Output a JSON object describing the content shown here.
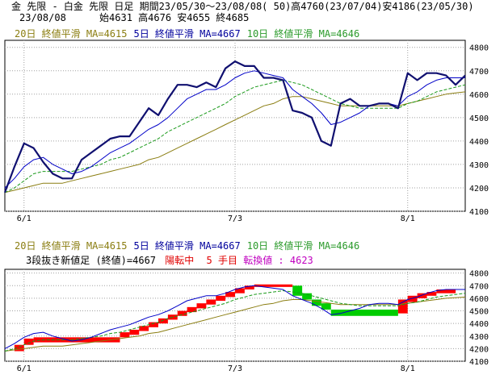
{
  "header": {
    "title": "金 先限 - 白金 先限 日足 期間23/05/30～23/08/08( 50)高4760(23/07/04)安4186(23/05/30)",
    "date": "23/08/08",
    "ohlc": "始4631 高4676 安4655 終4685"
  },
  "ma_legend": {
    "ma20": "20日 終値平滑 MA=4615",
    "ma5": "5日 終値平滑 MA=4667",
    "ma10": "10日 終値平滑 MA=4646"
  },
  "kagi_status": {
    "label": "3段抜き新値足 (終値)=4667",
    "trend": "陽転中",
    "count": "5 手目",
    "reversal": "転換値 : 4623"
  },
  "colors": {
    "close_line": "#101070",
    "ma5": "#0000c8",
    "ma10": "#1a9a1a",
    "ma20": "#8a7d10",
    "up_block": "#ff0000",
    "down_block": "#00cc00",
    "grid": "#a0a0a0"
  },
  "chart_data": [
    {
      "type": "line",
      "name": "price",
      "x_tick_labels": [
        "6/1",
        "7/3",
        "8/1"
      ],
      "x_tick_index": [
        2,
        24,
        42
      ],
      "y_ticks": [
        4100,
        4200,
        4300,
        4400,
        4500,
        4600,
        4700,
        4800
      ],
      "ylim": [
        4100,
        4830
      ],
      "grid": true,
      "series": [
        {
          "name": "close",
          "values": [
            4180,
            4290,
            4390,
            4370,
            4310,
            4260,
            4240,
            4240,
            4320,
            4350,
            4380,
            4410,
            4420,
            4420,
            4480,
            4540,
            4510,
            4580,
            4640,
            4640,
            4630,
            4650,
            4630,
            4710,
            4740,
            4720,
            4720,
            4670,
            4670,
            4660,
            4530,
            4520,
            4500,
            4400,
            4380,
            4560,
            4580,
            4550,
            4550,
            4560,
            4560,
            4540,
            4690,
            4660,
            4690,
            4690,
            4680,
            4640,
            4680
          ]
        },
        {
          "name": "ma5",
          "values": [
            4200,
            4240,
            4290,
            4320,
            4330,
            4300,
            4280,
            4260,
            4270,
            4290,
            4320,
            4350,
            4370,
            4390,
            4420,
            4450,
            4470,
            4500,
            4540,
            4580,
            4600,
            4620,
            4620,
            4640,
            4670,
            4690,
            4700,
            4690,
            4680,
            4670,
            4620,
            4590,
            4560,
            4520,
            4470,
            4480,
            4500,
            4520,
            4550,
            4560,
            4560,
            4550,
            4590,
            4610,
            4640,
            4660,
            4670,
            4670,
            4670
          ]
        },
        {
          "name": "ma10",
          "values": [
            4180,
            4200,
            4230,
            4260,
            4270,
            4270,
            4270,
            4270,
            4280,
            4290,
            4300,
            4320,
            4330,
            4350,
            4370,
            4390,
            4410,
            4440,
            4460,
            4480,
            4500,
            4520,
            4540,
            4560,
            4590,
            4610,
            4630,
            4640,
            4650,
            4660,
            4650,
            4640,
            4620,
            4600,
            4580,
            4560,
            4550,
            4540,
            4540,
            4540,
            4540,
            4540,
            4560,
            4570,
            4590,
            4610,
            4620,
            4630,
            4640
          ]
        },
        {
          "name": "ma20",
          "values": [
            4180,
            4190,
            4200,
            4210,
            4220,
            4220,
            4220,
            4230,
            4240,
            4250,
            4260,
            4270,
            4280,
            4290,
            4300,
            4320,
            4330,
            4350,
            4370,
            4390,
            4410,
            4430,
            4450,
            4470,
            4490,
            4510,
            4530,
            4550,
            4560,
            4580,
            4590,
            4590,
            4580,
            4570,
            4560,
            4550,
            4550,
            4550,
            4550,
            4550,
            4550,
            4550,
            4560,
            4570,
            4580,
            4590,
            4600,
            4605,
            4610
          ]
        }
      ]
    },
    {
      "type": "bar",
      "name": "new-price-blocks",
      "x_tick_labels": [
        "6/1",
        "7/3",
        "8/1"
      ],
      "y_ticks": [
        4100,
        4200,
        4300,
        4400,
        4500,
        4600,
        4700,
        4800
      ],
      "ylim": [
        4100,
        4830
      ],
      "grid": true,
      "blocks": [
        {
          "start": 1,
          "end": 2,
          "low": 4180,
          "high": 4230,
          "dir": "up"
        },
        {
          "start": 2,
          "end": 3,
          "low": 4230,
          "high": 4280,
          "dir": "up"
        },
        {
          "start": 3,
          "end": 12,
          "low": 4250,
          "high": 4290,
          "dir": "up"
        },
        {
          "start": 12,
          "end": 13,
          "low": 4290,
          "high": 4330,
          "dir": "up"
        },
        {
          "start": 13,
          "end": 14,
          "low": 4310,
          "high": 4350,
          "dir": "up"
        },
        {
          "start": 14,
          "end": 15,
          "low": 4340,
          "high": 4380,
          "dir": "up"
        },
        {
          "start": 15,
          "end": 16,
          "low": 4370,
          "high": 4410,
          "dir": "up"
        },
        {
          "start": 16,
          "end": 17,
          "low": 4400,
          "high": 4440,
          "dir": "up"
        },
        {
          "start": 17,
          "end": 18,
          "low": 4430,
          "high": 4470,
          "dir": "up"
        },
        {
          "start": 18,
          "end": 19,
          "low": 4460,
          "high": 4500,
          "dir": "up"
        },
        {
          "start": 19,
          "end": 20,
          "low": 4490,
          "high": 4530,
          "dir": "up"
        },
        {
          "start": 20,
          "end": 21,
          "low": 4520,
          "high": 4560,
          "dir": "up"
        },
        {
          "start": 21,
          "end": 22,
          "low": 4550,
          "high": 4590,
          "dir": "up"
        },
        {
          "start": 22,
          "end": 23,
          "low": 4580,
          "high": 4620,
          "dir": "up"
        },
        {
          "start": 23,
          "end": 24,
          "low": 4610,
          "high": 4650,
          "dir": "up"
        },
        {
          "start": 24,
          "end": 25,
          "low": 4640,
          "high": 4680,
          "dir": "up"
        },
        {
          "start": 25,
          "end": 26,
          "low": 4670,
          "high": 4700,
          "dir": "up"
        },
        {
          "start": 26,
          "end": 30,
          "low": 4690,
          "high": 4710,
          "dir": "up"
        },
        {
          "start": 30,
          "end": 31,
          "low": 4620,
          "high": 4700,
          "dir": "down"
        },
        {
          "start": 31,
          "end": 32,
          "low": 4590,
          "high": 4640,
          "dir": "down"
        },
        {
          "start": 32,
          "end": 33,
          "low": 4540,
          "high": 4590,
          "dir": "down"
        },
        {
          "start": 33,
          "end": 34,
          "low": 4510,
          "high": 4560,
          "dir": "down"
        },
        {
          "start": 34,
          "end": 41,
          "low": 4460,
          "high": 4510,
          "dir": "down"
        },
        {
          "start": 41,
          "end": 42,
          "low": 4480,
          "high": 4590,
          "dir": "up"
        },
        {
          "start": 42,
          "end": 43,
          "low": 4570,
          "high": 4620,
          "dir": "up"
        },
        {
          "start": 43,
          "end": 44,
          "low": 4600,
          "high": 4640,
          "dir": "up"
        },
        {
          "start": 44,
          "end": 45,
          "low": 4620,
          "high": 4650,
          "dir": "up"
        },
        {
          "start": 45,
          "end": 47,
          "low": 4640,
          "high": 4670,
          "dir": "up"
        }
      ],
      "series": [
        {
          "name": "ma5",
          "ref": "price.ma5"
        },
        {
          "name": "ma10",
          "ref": "price.ma10"
        },
        {
          "name": "ma20",
          "ref": "price.ma20"
        }
      ]
    }
  ]
}
